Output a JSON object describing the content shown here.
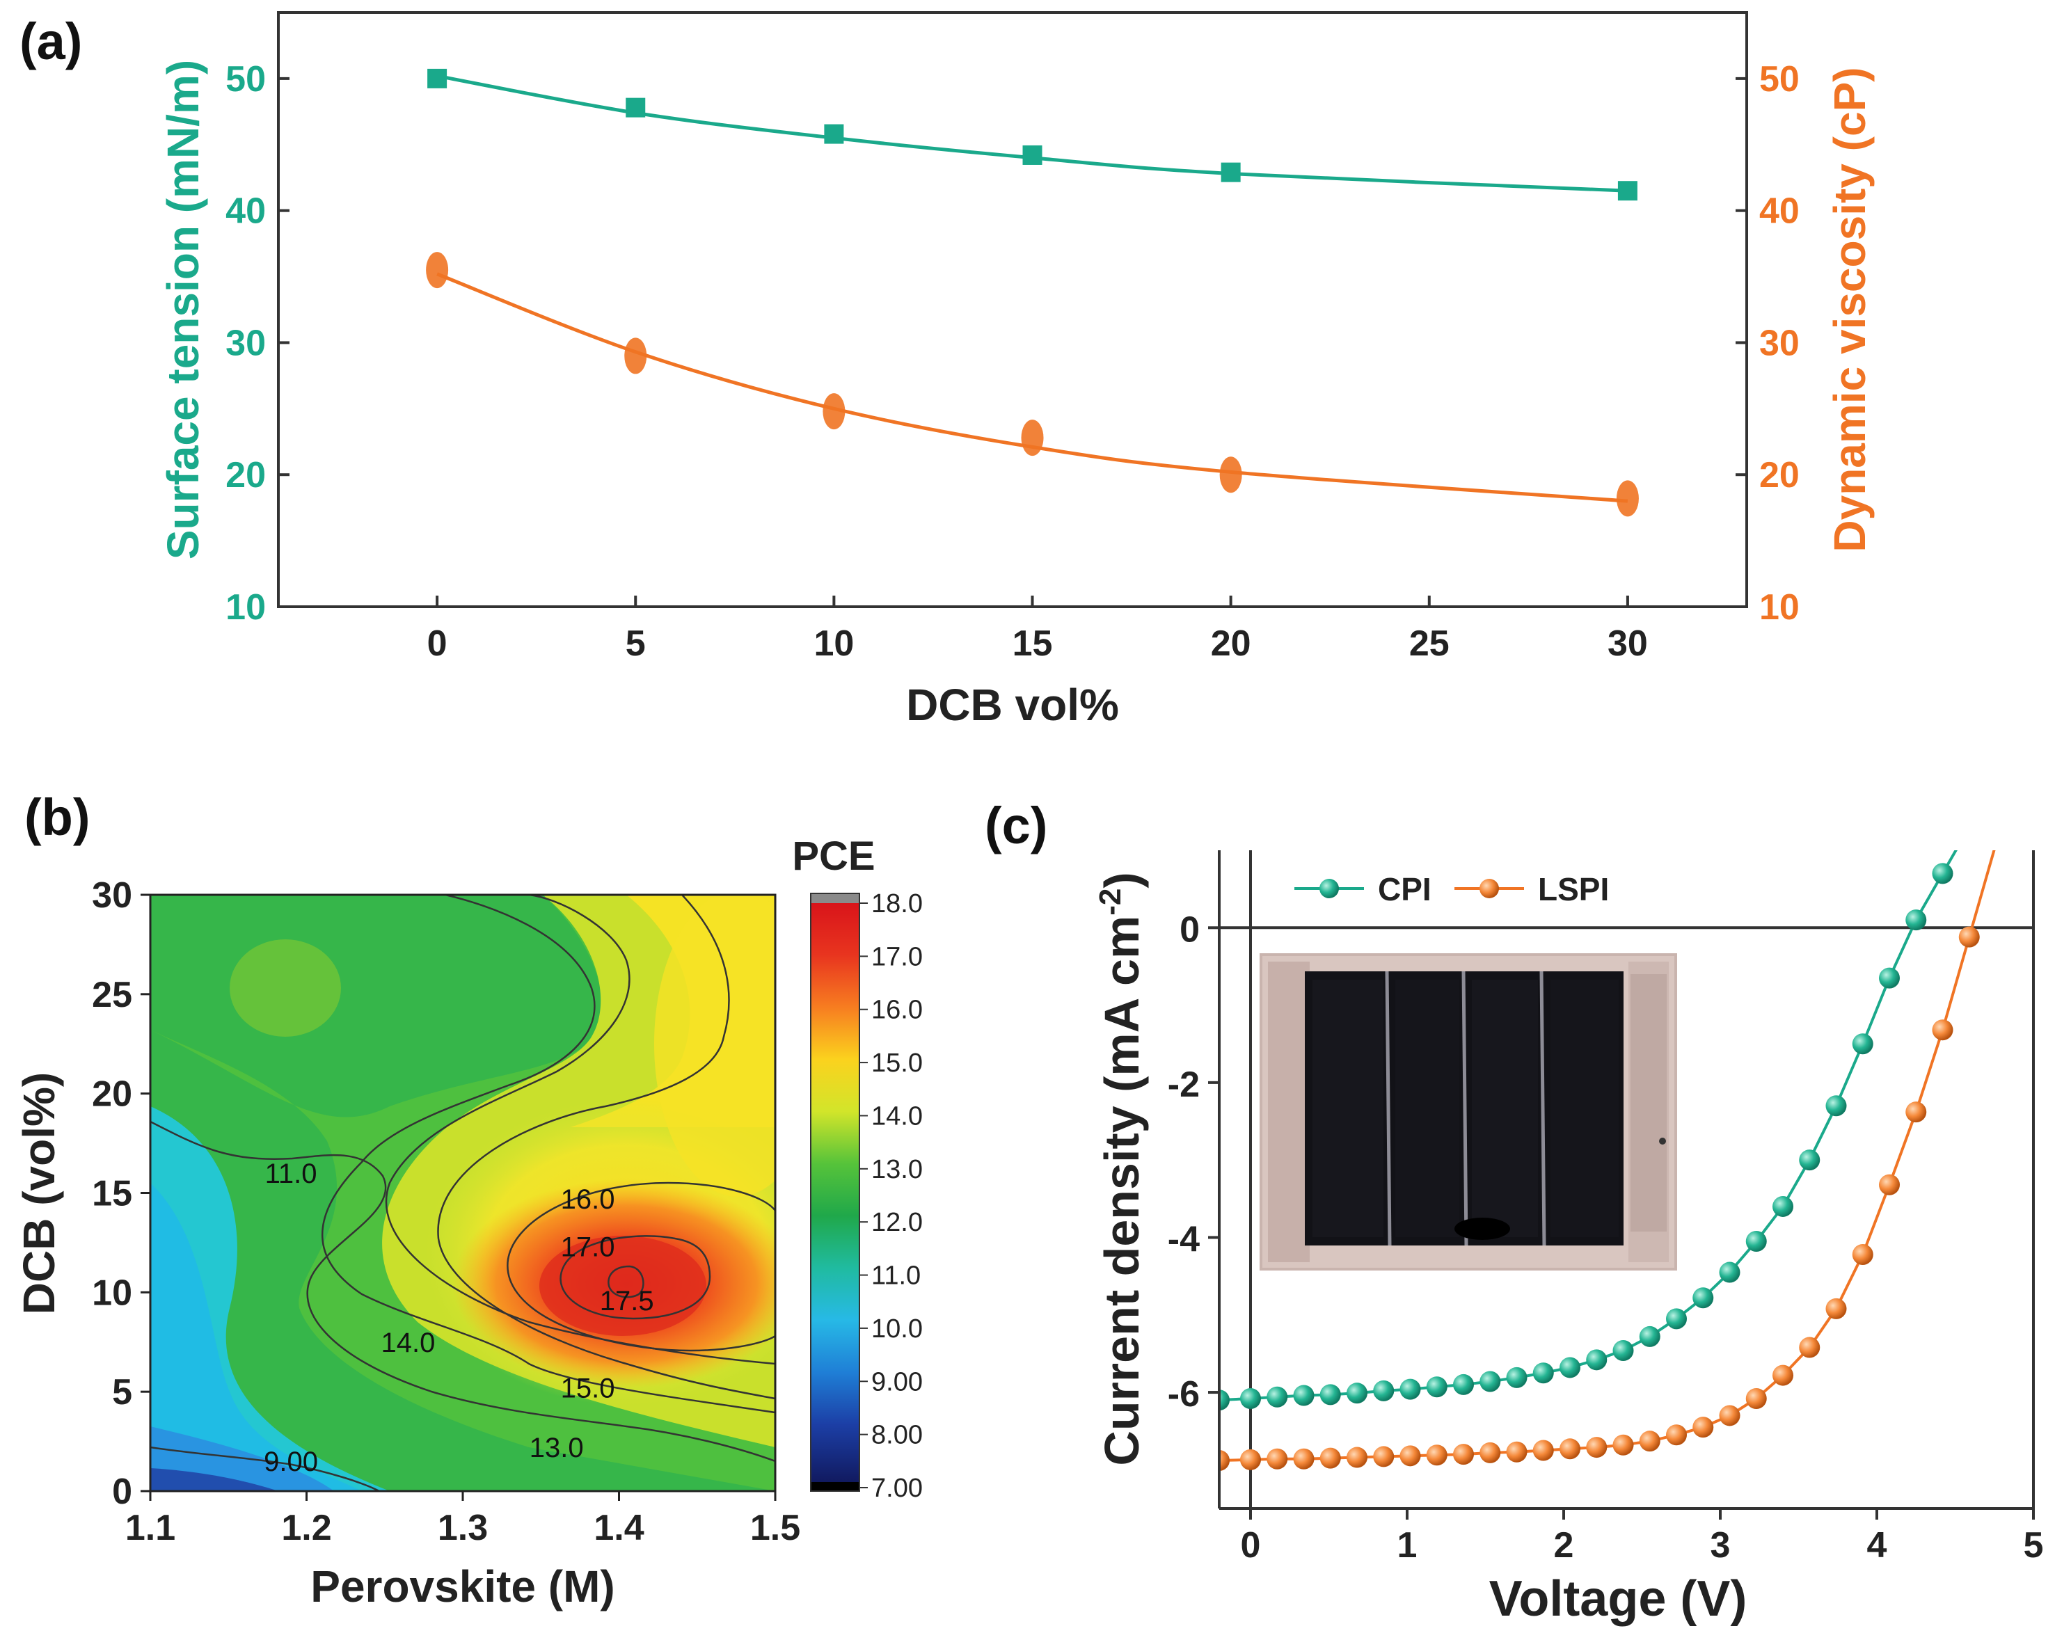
{
  "panels": {
    "a": "(a)",
    "b": "(b)",
    "c": "(c)"
  },
  "colors": {
    "teal": "#1aa98b",
    "orange": "#f07424",
    "axis": "#333333"
  },
  "chart_data": [
    {
      "id": "a",
      "type": "scatter",
      "xlabel": "DCB vol%",
      "ylabel": "Surface tension (mN/m)",
      "y2label": "Dynamic viscosity (cP)",
      "xlim": [
        -4,
        33
      ],
      "ylim": [
        10,
        55
      ],
      "y2lim": [
        10,
        55
      ],
      "xticks": [
        0,
        5,
        10,
        15,
        20,
        25,
        30
      ],
      "yticks": [
        10,
        20,
        30,
        40,
        50
      ],
      "y2ticks": [
        10,
        20,
        30,
        40,
        50
      ],
      "series": [
        {
          "name": "Surface tension",
          "axis": "left",
          "marker": "square",
          "x": [
            0,
            5,
            10,
            15,
            20,
            30
          ],
          "y": [
            50.0,
            47.8,
            45.8,
            44.2,
            42.9,
            41.5
          ],
          "fit_y": [
            50.2,
            47.4,
            45.5,
            44.0,
            42.8,
            41.5
          ]
        },
        {
          "name": "Dynamic viscosity",
          "axis": "right",
          "marker": "circle",
          "x": [
            0,
            5,
            10,
            15,
            20,
            30
          ],
          "y": [
            35.5,
            29.0,
            24.8,
            22.8,
            20.0,
            18.2
          ],
          "fit_y": [
            35.2,
            29.3,
            25.0,
            22.1,
            20.2,
            18.0
          ]
        }
      ]
    },
    {
      "id": "b",
      "type": "heatmap",
      "xlabel": "Perovskite (M)",
      "ylabel": "DCB (vol%)",
      "xlim": [
        1.1,
        1.5
      ],
      "ylim": [
        0,
        30
      ],
      "xticks": [
        "1.1",
        "1.2",
        "1.3",
        "1.4",
        "1.5"
      ],
      "yticks": [
        "0",
        "5",
        "10",
        "15",
        "20",
        "25",
        "30"
      ],
      "colorbar_title": "PCE",
      "colorbar_ticks": [
        "18.0",
        "17.0",
        "16.0",
        "15.0",
        "14.0",
        "13.0",
        "12.0",
        "11.0",
        "10.0",
        "9.00",
        "8.00",
        "7.00"
      ],
      "zlim": [
        7.0,
        18.0
      ],
      "contour_labels": [
        {
          "text": "11.0",
          "x": 1.19,
          "y": 16
        },
        {
          "text": "16.0",
          "x": 1.38,
          "y": 14.7
        },
        {
          "text": "17.0",
          "x": 1.38,
          "y": 12.3
        },
        {
          "text": "17.5",
          "x": 1.405,
          "y": 9.6
        },
        {
          "text": "14.0",
          "x": 1.265,
          "y": 7.5
        },
        {
          "text": "15.0",
          "x": 1.38,
          "y": 5.2
        },
        {
          "text": "13.0",
          "x": 1.36,
          "y": 2.2
        },
        {
          "text": "9.00",
          "x": 1.19,
          "y": 1.5
        }
      ]
    },
    {
      "id": "c",
      "type": "line",
      "xlabel": "Voltage (V)",
      "ylabel": "Current density (mA cm",
      "ylabel_sup": "-2",
      "ylabel_end": ")",
      "xlim": [
        -0.2,
        5
      ],
      "ylim": [
        -7.5,
        1
      ],
      "xticks": [
        0,
        1,
        2,
        3,
        4,
        5
      ],
      "yticks": [
        0,
        -2,
        -4,
        -6
      ],
      "legend_position": "top-left",
      "series": [
        {
          "name": "CPI",
          "x": [
            -0.2,
            0.0,
            0.17,
            0.34,
            0.51,
            0.68,
            0.85,
            1.02,
            1.19,
            1.36,
            1.53,
            1.7,
            1.87,
            2.04,
            2.21,
            2.38,
            2.55,
            2.72,
            2.89,
            3.06,
            3.23,
            3.4,
            3.57,
            3.74,
            3.91,
            4.08,
            4.25,
            4.42
          ],
          "y": [
            -6.1,
            -6.08,
            -6.06,
            -6.04,
            -6.03,
            -6.01,
            -5.98,
            -5.96,
            -5.93,
            -5.9,
            -5.86,
            -5.81,
            -5.75,
            -5.68,
            -5.58,
            -5.46,
            -5.28,
            -5.05,
            -4.78,
            -4.45,
            -4.05,
            -3.6,
            -3.0,
            -2.3,
            -1.5,
            -0.65,
            0.1,
            0.7
          ]
        },
        {
          "name": "LSPI",
          "x": [
            -0.2,
            0.0,
            0.17,
            0.34,
            0.51,
            0.68,
            0.85,
            1.02,
            1.19,
            1.36,
            1.53,
            1.7,
            1.87,
            2.04,
            2.21,
            2.38,
            2.55,
            2.72,
            2.89,
            3.06,
            3.23,
            3.4,
            3.57,
            3.74,
            3.91,
            4.08,
            4.25,
            4.42,
            4.59
          ],
          "y": [
            -6.88,
            -6.87,
            -6.86,
            -6.86,
            -6.85,
            -6.84,
            -6.83,
            -6.82,
            -6.81,
            -6.8,
            -6.78,
            -6.77,
            -6.75,
            -6.73,
            -6.71,
            -6.68,
            -6.63,
            -6.55,
            -6.45,
            -6.3,
            -6.08,
            -5.78,
            -5.42,
            -4.92,
            -4.22,
            -3.32,
            -2.38,
            -1.32,
            -0.12
          ]
        }
      ]
    }
  ]
}
